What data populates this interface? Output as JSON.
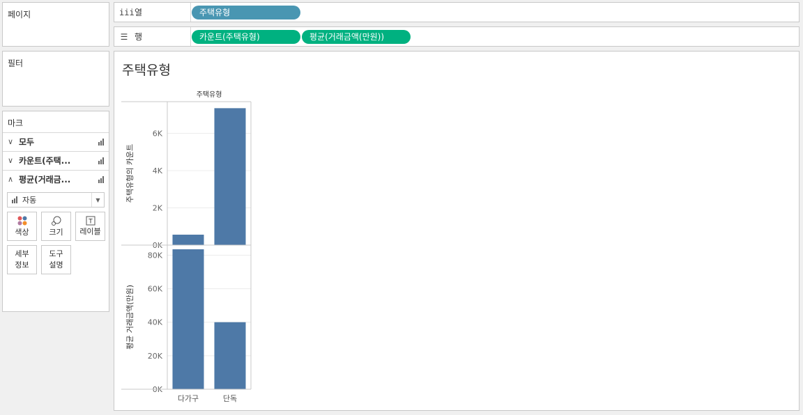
{
  "pages_panel": {
    "title": "페이지"
  },
  "filters_panel": {
    "title": "필터"
  },
  "columns_shelf": {
    "icon": "iii",
    "label": "열",
    "pills": [
      {
        "text": "주택유형",
        "color": "#4996b2"
      }
    ]
  },
  "rows_shelf": {
    "icon": "☰",
    "label": "행",
    "pills": [
      {
        "text": "카운트(주택유형)",
        "color": "#00b180"
      },
      {
        "text": "평균(거래금액(만원))",
        "color": "#00b180"
      }
    ]
  },
  "marks_card": {
    "title": "마크",
    "rows": [
      {
        "label": "모두",
        "expanded": false
      },
      {
        "label": "카운트(주택...",
        "expanded": false
      },
      {
        "label": "평균(거래금...",
        "expanded": true
      }
    ],
    "mark_type": "자동",
    "buttons": {
      "color": "색상",
      "size": "크기",
      "label": "레이블",
      "detail_1": "세부",
      "detail_2": "정보",
      "tooltip_1": "도구",
      "tooltip_2": "설명"
    }
  },
  "view": {
    "title": "주택유형"
  },
  "chart_data": {
    "type": "bar",
    "column_header": "주택유형",
    "categories": [
      "다가구",
      "단독"
    ],
    "bar_color": "#4e79a7",
    "panes": [
      {
        "ylabel": "주택유형의 카운트",
        "values": [
          560,
          7350
        ],
        "ylim": [
          0,
          7700
        ],
        "ticks": [
          0,
          2000,
          4000,
          6000
        ],
        "tick_labels": [
          "0K",
          "2K",
          "4K",
          "6K"
        ]
      },
      {
        "ylabel": "평균 거래금액(만원)",
        "values": [
          83500,
          40000
        ],
        "ylim": [
          0,
          86000
        ],
        "ticks": [
          0,
          20000,
          40000,
          60000,
          80000
        ],
        "tick_labels": [
          "0K",
          "20K",
          "40K",
          "60K",
          "80K"
        ]
      }
    ]
  }
}
